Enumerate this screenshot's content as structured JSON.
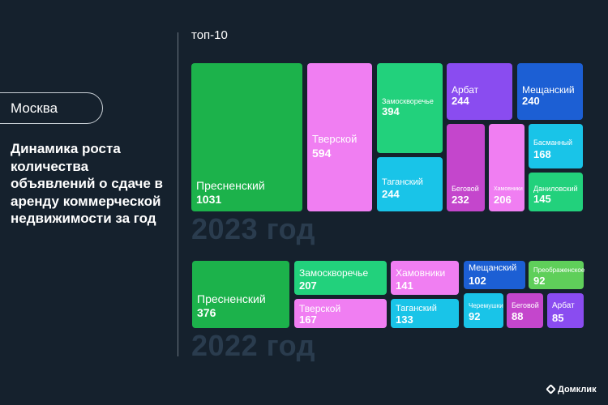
{
  "region_label": "Москва",
  "headline": "Динамика роста количества объявлений о сдаче в аренду коммерческой недвижимости за год",
  "top_label": "топ-10",
  "brand": {
    "name": "Домклик",
    "icon": "domclick-logo-icon"
  },
  "colors": {
    "background": "#15212d",
    "green": "#1cb24b",
    "pink": "#f07ef2",
    "mint": "#22d17c",
    "cyan": "#19c4e8",
    "violet": "#8a4cf0",
    "blue": "#1c5fd4",
    "magenta": "#c446cc",
    "light_green": "#5fcf5a",
    "year_text": "#2a3c4e"
  },
  "chart_data": [
    {
      "type": "treemap",
      "title": "2023 год",
      "items": [
        {
          "name": "Пресненский",
          "value": 1031
        },
        {
          "name": "Тверской",
          "value": 594
        },
        {
          "name": "Замоскворечье",
          "value": 394
        },
        {
          "name": "Таганский",
          "value": 244
        },
        {
          "name": "Арбат",
          "value": 244
        },
        {
          "name": "Мещанский",
          "value": 240
        },
        {
          "name": "Беговой",
          "value": 232
        },
        {
          "name": "Хамовники",
          "value": 206
        },
        {
          "name": "Басманный",
          "value": 168
        },
        {
          "name": "Даниловский",
          "value": 145
        }
      ]
    },
    {
      "type": "treemap",
      "title": "2022 год",
      "items": [
        {
          "name": "Пресненский",
          "value": 376
        },
        {
          "name": "Замоскворечье",
          "value": 207
        },
        {
          "name": "Тверской",
          "value": 167
        },
        {
          "name": "Хамовники",
          "value": 141
        },
        {
          "name": "Таганский",
          "value": 133
        },
        {
          "name": "Мещанский",
          "value": 102
        },
        {
          "name": "Преображенское",
          "value": 92
        },
        {
          "name": "Черемушки",
          "value": 92
        },
        {
          "name": "Беговой",
          "value": 88
        },
        {
          "name": "Арбат",
          "value": 85
        }
      ]
    }
  ]
}
